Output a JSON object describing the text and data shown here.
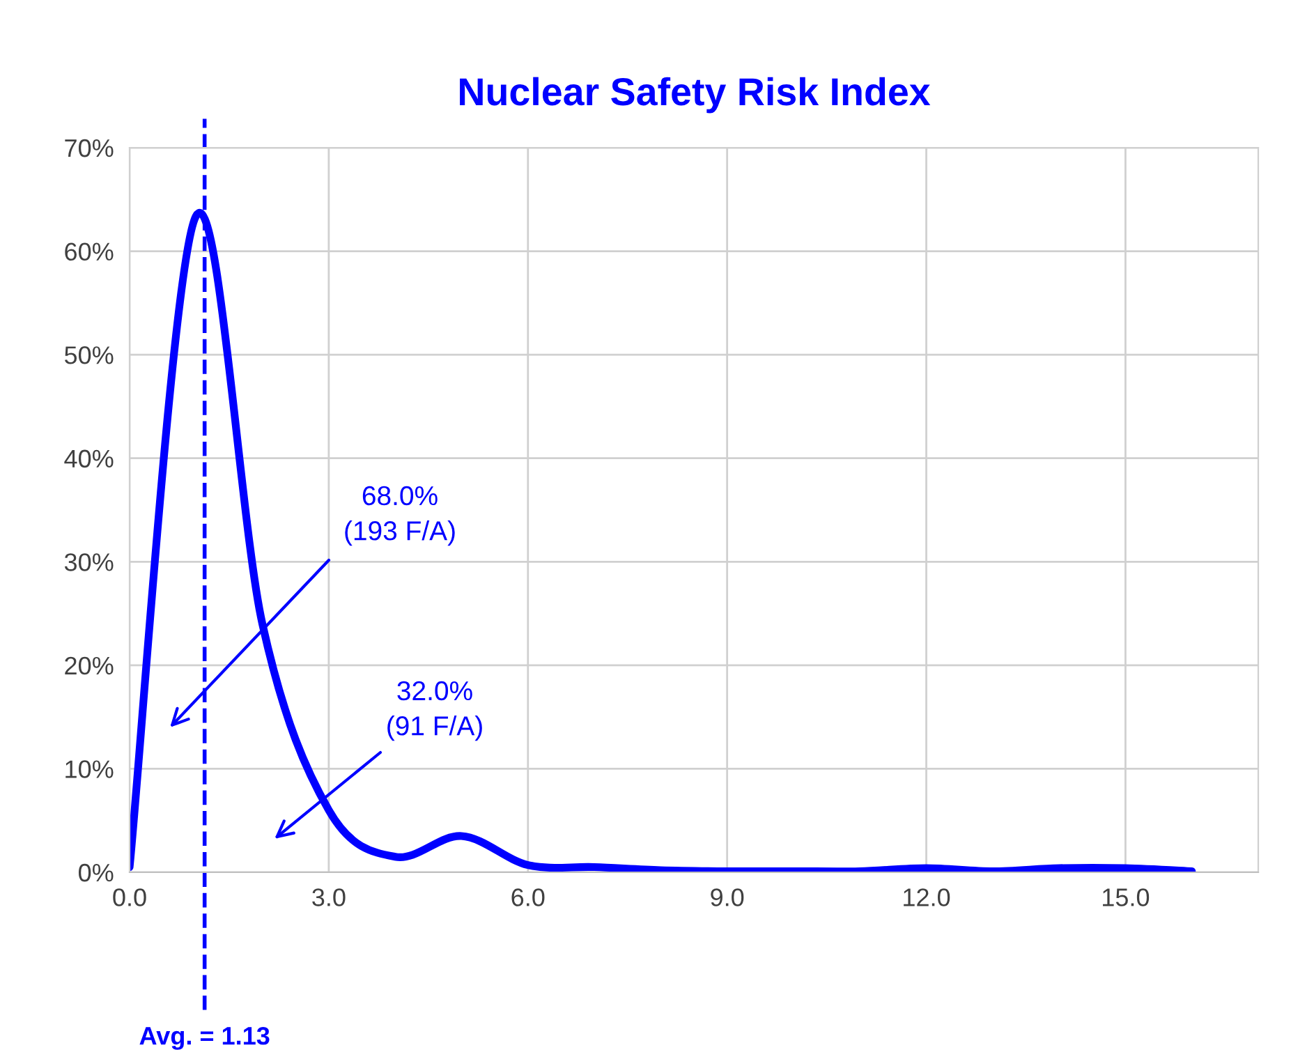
{
  "chart_data": {
    "type": "line",
    "title": "Nuclear Safety Risk Index",
    "x": [
      0,
      1,
      2,
      3,
      4,
      5,
      6,
      7,
      8,
      9,
      10,
      11,
      12,
      13,
      14,
      15,
      16
    ],
    "series": [
      {
        "color": "#0000ff",
        "values": [
          0.5,
          63.4,
          24,
          6,
          1.5,
          3.5,
          0.7,
          0.5,
          0.2,
          0.1,
          0.1,
          0.1,
          0.4,
          0.1,
          0.4,
          0.4,
          0.1
        ]
      }
    ],
    "xlim": [
      0,
      17
    ],
    "xticks": [
      {
        "value": 0,
        "label": "0.0"
      },
      {
        "value": 3,
        "label": "3.0"
      },
      {
        "value": 6,
        "label": "6.0"
      },
      {
        "value": 9,
        "label": "9.0"
      },
      {
        "value": 12,
        "label": "12.0"
      },
      {
        "value": 15,
        "label": "15.0"
      }
    ],
    "ylim": [
      0,
      70
    ],
    "yticks": [
      {
        "value": 0,
        "label": "0%"
      },
      {
        "value": 10,
        "label": "10%"
      },
      {
        "value": 20,
        "label": "20%"
      },
      {
        "value": 30,
        "label": "30%"
      },
      {
        "value": 40,
        "label": "40%"
      },
      {
        "value": 50,
        "label": "50%"
      },
      {
        "value": 60,
        "label": "60%"
      },
      {
        "value": 70,
        "label": "70%"
      }
    ],
    "grid": true,
    "legend": false,
    "marker": "none",
    "line_style": "solid",
    "ref_lines": [
      {
        "axis": "x",
        "value": 1.13,
        "label": "Avg. = 1.13",
        "color": "#0000ff",
        "line_style": "dashed"
      }
    ],
    "annotations": [
      "68.0%\n(193 F/A)",
      "32.0%\n(91 F/A)"
    ]
  }
}
